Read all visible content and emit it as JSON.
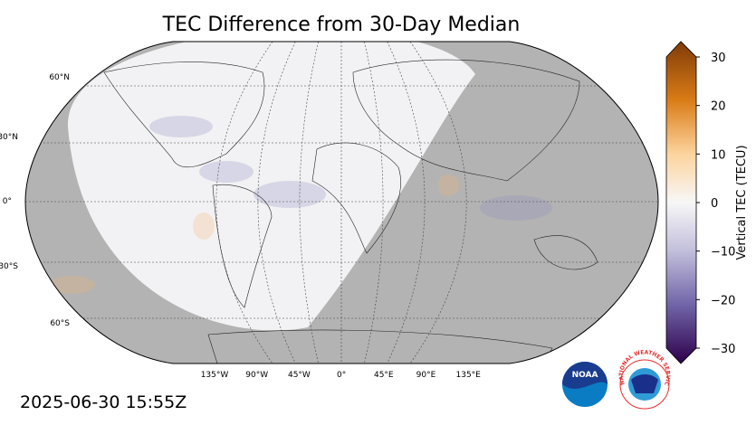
{
  "chart_data": {
    "type": "map",
    "title": "TEC Difference from 30-Day Median",
    "lat_labels": [
      "60°N",
      "30°N",
      "0°",
      "30°S",
      "60°S"
    ],
    "lon_labels": [
      "135°W",
      "90°W",
      "45°W",
      "0°",
      "45°E",
      "90°E",
      "135°E"
    ],
    "colorbar": {
      "label": "Vertical TEC (TECU)",
      "lim": [
        -30,
        30
      ],
      "ticks": [
        30,
        20,
        10,
        0,
        {
          "value": -10,
          "label": "−10"
        },
        {
          "value": -20,
          "label": "−20"
        },
        {
          "value": -30,
          "label": "−30"
        }
      ]
    },
    "timestamp": "2025-06-30 15:55Z",
    "logos": {
      "noaa": "NOAA",
      "nws": "NATIONAL WEATHER SERVICE"
    }
  }
}
